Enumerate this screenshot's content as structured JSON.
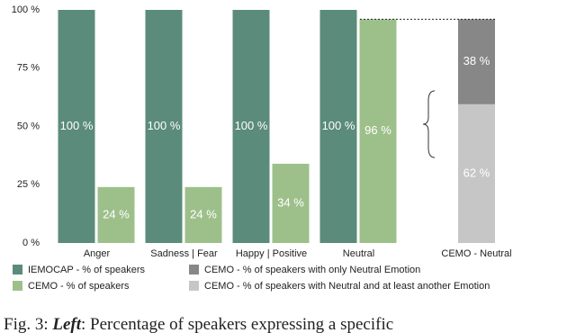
{
  "chart_data": [
    {
      "type": "grouped_bar",
      "categories": [
        "Anger",
        "Sadness | Fear",
        "Happy | Positive",
        "Neutral"
      ],
      "series": [
        {
          "name": "IEMOCAP - % of speakers",
          "color": "#5b8b7b",
          "values": [
            100,
            100,
            100,
            100
          ],
          "value_labels": [
            "100 %",
            "100 %",
            "100 %",
            "100 %"
          ]
        },
        {
          "name": "CEMO - % of speakers",
          "color": "#9dc08b",
          "values": [
            24,
            24,
            34,
            96
          ],
          "value_labels": [
            "24 %",
            "24 %",
            "34 %",
            "96 %"
          ]
        }
      ],
      "ylim": [
        0,
        100
      ],
      "yticks": [
        {
          "value": 0,
          "label": "0 %"
        },
        {
          "value": 25,
          "label": "25 %"
        },
        {
          "value": 50,
          "label": "50 %"
        },
        {
          "value": 75,
          "label": "75 %"
        },
        {
          "value": 100,
          "label": "100 %"
        }
      ]
    },
    {
      "type": "stacked_bar",
      "categories": [
        "CEMO - Neutral"
      ],
      "series": [
        {
          "name": "CEMO - % of speakers with only Neutral Emotion",
          "color": "#878787",
          "values": [
            38
          ],
          "value_labels": [
            "38 %"
          ]
        },
        {
          "name": "CEMO - % of speakers with Neutral and at least another Emotion",
          "color": "#c6c6c6",
          "values": [
            62
          ],
          "value_labels": [
            "62 %"
          ]
        }
      ],
      "ylim": [
        0,
        100
      ]
    }
  ],
  "caption": {
    "label": "Fig. 3:",
    "emphasis": "Left",
    "text": ": Percentage of speakers expressing a specific"
  }
}
